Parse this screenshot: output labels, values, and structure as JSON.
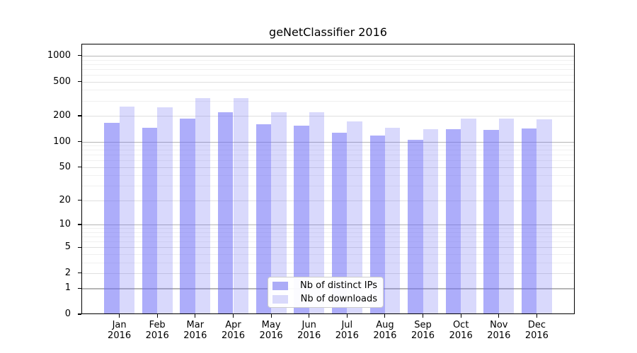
{
  "title": "geNetClassifier 2016",
  "chart_data": {
    "type": "bar",
    "title": "geNetClassifier 2016",
    "categories": [
      "Jan 2016",
      "Feb 2016",
      "Mar 2016",
      "Apr 2016",
      "May 2016",
      "Jun 2016",
      "Jul 2016",
      "Aug 2016",
      "Sep 2016",
      "Oct 2016",
      "Nov 2016",
      "Dec 2016"
    ],
    "x_tick_line1": [
      "Jan",
      "Feb",
      "Mar",
      "Apr",
      "May",
      "Jun",
      "Jul",
      "Aug",
      "Sep",
      "Oct",
      "Nov",
      "Dec"
    ],
    "x_tick_line2": "2016",
    "series": [
      {
        "name": "Nb of distinct IPs",
        "color": "#acacf7",
        "fill": "rgba(105,105,245,0.55)",
        "values": [
          166,
          146,
          185,
          222,
          160,
          154,
          127,
          118,
          104,
          140,
          137,
          143
        ]
      },
      {
        "name": "Nb of downloads",
        "color": "#d9d9fb",
        "fill": "rgba(105,105,245,0.25)",
        "values": [
          256,
          251,
          320,
          319,
          220,
          222,
          172,
          145,
          140,
          187,
          186,
          181
        ]
      }
    ],
    "xlabel": "",
    "ylabel": "",
    "yscale": "log1p",
    "ylim": [
      0,
      1360
    ],
    "yticks": [
      0,
      1,
      2,
      5,
      10,
      20,
      50,
      100,
      200,
      500,
      1000
    ],
    "grid": true,
    "legend_position": "lower-center"
  }
}
